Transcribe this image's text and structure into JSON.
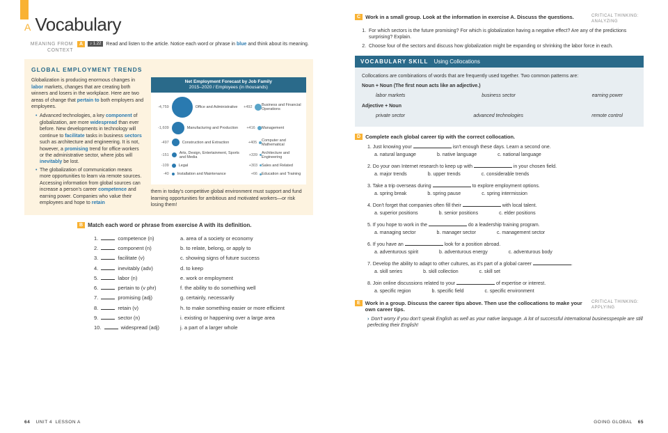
{
  "left": {
    "title_letter": "A",
    "title": "Vocabulary",
    "meaning_label": "MEANING FROM CONTEXT",
    "exA": {
      "badge": "A",
      "audio": "1.22",
      "instruction_pre": "Read and listen to the article. Notice each word or phrase in ",
      "instruction_blue": "blue",
      "instruction_post": " and think about its meaning."
    },
    "tan": {
      "title": "GLOBAL EMPLOYMENT TRENDS",
      "para1_parts": [
        "Globalization is producing enormous changes in ",
        "labor",
        " markets, changes that are creating both winners and losers in the workplace. Here are two areas of change that ",
        "pertain to",
        " both employers and employees."
      ],
      "bullet1_parts": [
        "Advanced technologies, a key ",
        "component",
        " of globalization, are more ",
        "widespread",
        " than ever before. New developments in technology will continue to ",
        "facilitate",
        " tasks in business ",
        "sectors",
        " such as architecture and engineering. It is not, however, a ",
        "promising",
        " trend for office workers or the administrative sector, where jobs will ",
        "inevitably",
        " be lost."
      ],
      "bullet2_parts": [
        "The globalization of communication means more opportunities to learn via remote sources. Accessing information from global sources can increase a person's career ",
        "competence",
        " and earning power. Companies who value their employees and hope to ",
        "retain"
      ],
      "footer_text": "them in today's competitive global environment must support and fund learning opportunities for ambitious and motivated workers—or risk losing them!"
    },
    "chart": {
      "title1": "Net Employment Forecast by Job Family",
      "title2": "2015–2020 / Employees (in thousands)",
      "rows": [
        {
          "vl": "-4,759",
          "size": 30,
          "ll": "Office and Administrative",
          "vr": "+492",
          "lr": "Business and Financial Operations"
        },
        {
          "vl": "-1,609",
          "size": 18,
          "ll": "Manufacturing and Production",
          "vr": "+416",
          "lr": "Management"
        },
        {
          "vl": "-497",
          "size": 11,
          "ll": "Construction and Extraction",
          "vr": "+405",
          "lr": "Computer and Mathematical"
        },
        {
          "vl": "-151",
          "size": 7,
          "ll": "Arts, Design, Entertainment, Sports and Media",
          "vr": "+339",
          "lr": "Architecture and Engineering"
        },
        {
          "vl": "-109",
          "size": 6,
          "ll": "Legal",
          "vr": "+303",
          "lr": "Sales and Related"
        },
        {
          "vl": "-40",
          "size": 4,
          "ll": "Installation and Maintenance",
          "vr": "+66",
          "lr": "Education and Training"
        }
      ]
    },
    "exB": {
      "badge": "B",
      "instruction": "Match each word or phrase from exercise A with its definition.",
      "left_items": [
        "competence (n)",
        "component (n)",
        "facilitate (v)",
        "inevitably (adv)",
        "labor (n)",
        "pertain to (v phr)",
        "promising (adj)",
        "retain (v)",
        "sector (n)",
        "widespread (adj)"
      ],
      "right_items": [
        "a. area of a society or economy",
        "b. to relate, belong, or apply to",
        "c. showing signs of future success",
        "d. to keep",
        "e. work or employment",
        "f. the ability to do something well",
        "g. certainly, necessarily",
        "h. to make something easier or more efficient",
        "i. existing or happening over a large area",
        "j. a part of a larger whole"
      ]
    },
    "footer": {
      "page": "64",
      "unit": "UNIT 4",
      "lesson": "LESSON A"
    }
  },
  "right": {
    "exC": {
      "badge": "C",
      "instruction": "Work in a small group. Look at the information in exercise A. Discuss the questions.",
      "crit": "CRITICAL THINKING: ANALYZING",
      "items": [
        "For which sectors is the future promising? For which is globalization having a negative effect? Are any of the predictions surprising? Explain.",
        "Choose four of the sectors and discuss how globalization might be expanding or shrinking the labor force in each."
      ]
    },
    "skill": {
      "label": "VOCABULARY SKILL",
      "title": "Using Collocations",
      "intro": "Collocations are combinations of words that are frequently used together. Two common patterns are:",
      "p1_label": "Noun + Noun (The first noun acts like an adjective.)",
      "p1_ex": [
        "labor markets",
        "business sector",
        "earning power"
      ],
      "p2_label": "Adjective + Noun",
      "p2_ex": [
        "private sector",
        "advanced technologies",
        "remote control"
      ]
    },
    "exD": {
      "badge": "D",
      "instruction": "Complete each global career tip with the correct collocation.",
      "tips": [
        {
          "stem_pre": "Just knowing your ",
          "stem_post": " isn't enough these days. Learn a second one.",
          "opts": [
            "a. natural language",
            "b. native language",
            "c. national language"
          ]
        },
        {
          "stem_pre": "Do your own Internet research to keep up with ",
          "stem_post": " in your chosen field.",
          "opts": [
            "a. major trends",
            "b. upper trends",
            "c. considerable trends"
          ]
        },
        {
          "stem_pre": "Take a trip overseas during ",
          "stem_post": " to explore employment options.",
          "opts": [
            "a. spring break",
            "b. spring pause",
            "c. spring intermission"
          ]
        },
        {
          "stem_pre": "Don't forget that companies often fill their ",
          "stem_post": " with local talent.",
          "opts": [
            "a. superior positions",
            "b. senior positions",
            "c. elder positions"
          ]
        },
        {
          "stem_pre": "If you hope to work in the ",
          "stem_post": " do a leadership training program.",
          "opts": [
            "a. managing sector",
            "b. manager sector",
            "c. management sector"
          ]
        },
        {
          "stem_pre": "If you have an ",
          "stem_post": " look for a position abroad.",
          "opts": [
            "a. adventurous spirit",
            "b. adventurous energy",
            "c. adventurous body"
          ]
        },
        {
          "stem_pre": "Develop the ability to adapt to other cultures, as it's part of a global career ",
          "stem_post": ".",
          "opts": [
            "a. skill series",
            "b. skill collection",
            "c. skill set"
          ]
        },
        {
          "stem_pre": "Join online discussions related to your ",
          "stem_post": " of expertise or interest.",
          "opts": [
            "a. specific region",
            "b. specific field",
            "c. specific environment"
          ]
        }
      ]
    },
    "exE": {
      "badge": "E",
      "instruction": "Work in a group. Discuss the career tips above. Then use the collocations to make your own career tips.",
      "crit": "CRITICAL THINKING: APPLYING",
      "example": "Don't worry if you don't speak English as well as your native language. A lot of successful international businesspeople are still perfecting their English!"
    },
    "footer": {
      "label": "GOING GLOBAL",
      "page": "65"
    }
  }
}
